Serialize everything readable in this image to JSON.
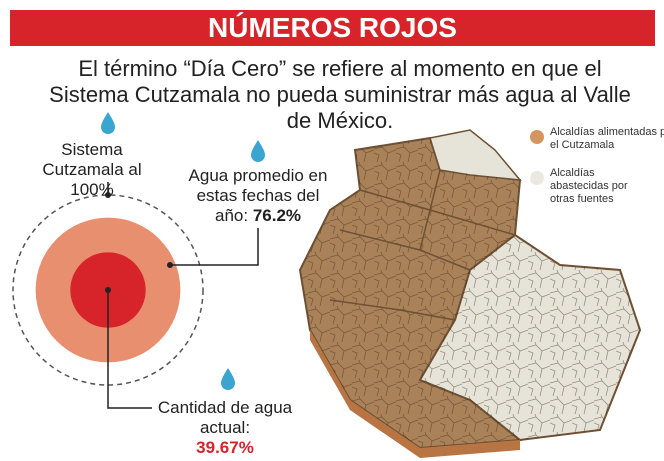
{
  "header": {
    "title": "NÚMEROS ROJOS"
  },
  "intro": "El término “Día Cero” se refiere al momento en que el Sistema Cutzamala no pueda suministrar más agua al Valle de México.",
  "circles": [
    {
      "label": "Sistema Cutzamala al",
      "value": 100,
      "value_label": "100%"
    },
    {
      "label": "Agua promedio en estas fechas del año:",
      "value": 76.2,
      "value_label": "76.2%"
    },
    {
      "label": "Cantidad de agua actual:",
      "value": 39.67,
      "value_label": "39.67%"
    }
  ],
  "legend": [
    {
      "label": "Alcaldías alimentadas por el Cutzamala",
      "color": "#d39661"
    },
    {
      "label": "Alcaldías abastecidas por otras fuentes",
      "color": "#ebe9df"
    }
  ]
}
